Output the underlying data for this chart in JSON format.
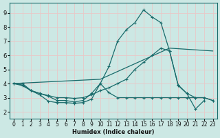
{
  "xlabel": "Humidex (Indice chaleur)",
  "xlim": [
    -0.5,
    23.5
  ],
  "ylim": [
    1.5,
    9.7
  ],
  "yticks": [
    2,
    3,
    4,
    5,
    6,
    7,
    8,
    9
  ],
  "xticks": [
    0,
    1,
    2,
    3,
    4,
    5,
    6,
    7,
    8,
    9,
    10,
    11,
    12,
    13,
    14,
    15,
    16,
    17,
    18,
    19,
    20,
    21,
    22,
    23
  ],
  "bg_color": "#cce8e4",
  "grid_color": "#e8c8c8",
  "line_color": "#1a6b6b",
  "line1_x": [
    0,
    1,
    2,
    3,
    4,
    5,
    6,
    7,
    8,
    9,
    10,
    11,
    12,
    13,
    14,
    15,
    16,
    17,
    18,
    19,
    20,
    21,
    22,
    23
  ],
  "line1_y": [
    4.0,
    4.0,
    3.5,
    3.2,
    2.75,
    2.65,
    2.65,
    2.6,
    2.65,
    2.9,
    4.0,
    3.35,
    3.0,
    3.0,
    3.0,
    3.0,
    3.0,
    3.0,
    3.0,
    3.0,
    3.0,
    3.0,
    3.0,
    2.8
  ],
  "line2_x": [
    0,
    1,
    2,
    3,
    4,
    5,
    6,
    7,
    8,
    9,
    10,
    11,
    12,
    13,
    14,
    15,
    16,
    17,
    18,
    19,
    20,
    21,
    22
  ],
  "line2_y": [
    4.0,
    3.9,
    3.5,
    3.3,
    3.1,
    2.8,
    2.8,
    2.7,
    2.8,
    3.3,
    4.0,
    5.2,
    7.0,
    7.8,
    8.3,
    9.2,
    8.7,
    8.3,
    6.3,
    3.9,
    3.3,
    2.2,
    2.8
  ],
  "line3_x": [
    0,
    1,
    2,
    3,
    4,
    5,
    6,
    7,
    8,
    9,
    10,
    11,
    12,
    13,
    14,
    15,
    16,
    17,
    18,
    19,
    20,
    21,
    22,
    23
  ],
  "line3_y": [
    4.0,
    3.85,
    3.5,
    3.3,
    3.15,
    3.0,
    3.0,
    2.95,
    3.0,
    3.2,
    3.5,
    3.7,
    4.0,
    4.3,
    5.0,
    5.5,
    6.0,
    6.5,
    6.3,
    3.85,
    3.3,
    3.0,
    3.0,
    2.8
  ],
  "line4_x": [
    0,
    10,
    18,
    23
  ],
  "line4_y": [
    4.0,
    4.3,
    6.5,
    6.3
  ]
}
